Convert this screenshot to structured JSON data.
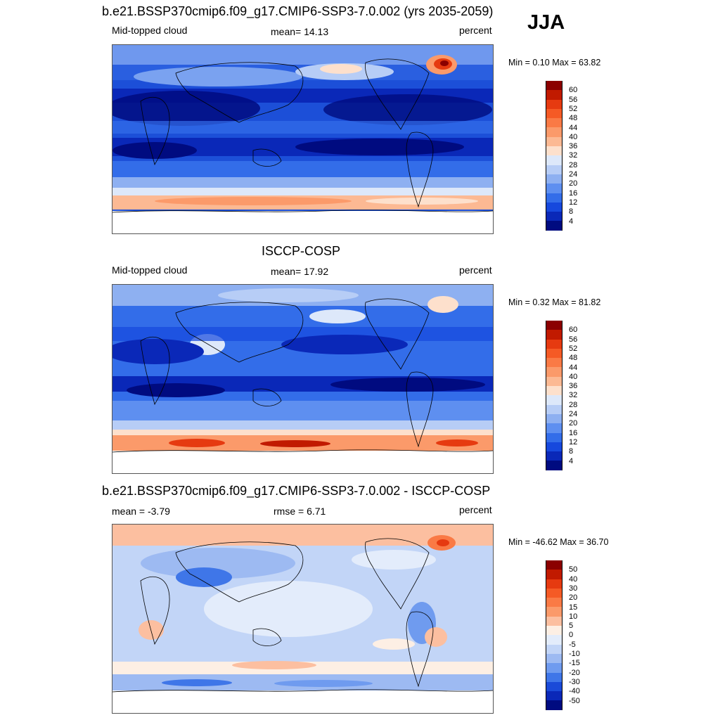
{
  "season": "JJA",
  "panels": [
    {
      "id": "model",
      "title": "b.e21.BSSP370cmip6.f09_g17.CMIP6-SSP3-7.0.002 (yrs 2035-2059)",
      "left_label": "Mid-topped cloud",
      "center_label": "mean=  14.13",
      "units": "percent",
      "minmax": "Min =   0.10 Max =  63.82",
      "colorbar": {
        "levels": [
          "60",
          "56",
          "52",
          "48",
          "44",
          "40",
          "36",
          "32",
          "28",
          "24",
          "20",
          "16",
          "12",
          "8",
          "4"
        ],
        "colors": [
          "#8b0000",
          "#c11a00",
          "#e63a10",
          "#f55a25",
          "#fa7a45",
          "#fb9a6a",
          "#fcb993",
          "#fde0cc",
          "#dde8fa",
          "#b7cdf6",
          "#8eb0f1",
          "#5e8ff0",
          "#336de9",
          "#1648dd",
          "#0a28b8",
          "#000b80"
        ]
      }
    },
    {
      "id": "obs",
      "title": "ISCCP-COSP",
      "left_label": "Mid-topped cloud",
      "center_label": "mean=  17.92",
      "units": "percent",
      "minmax": "Min =   0.32 Max =  81.82",
      "colorbar": {
        "levels": [
          "60",
          "56",
          "52",
          "48",
          "44",
          "40",
          "36",
          "32",
          "28",
          "24",
          "20",
          "16",
          "12",
          "8",
          "4"
        ],
        "colors": [
          "#8b0000",
          "#c11a00",
          "#e63a10",
          "#f55a25",
          "#fa7a45",
          "#fb9a6a",
          "#fcb993",
          "#fde0cc",
          "#dde8fa",
          "#b7cdf6",
          "#8eb0f1",
          "#5e8ff0",
          "#336de9",
          "#1648dd",
          "#0a28b8",
          "#000b80"
        ]
      }
    },
    {
      "id": "diff",
      "title": "b.e21.BSSP370cmip6.f09_g17.CMIP6-SSP3-7.0.002 - ISCCP-COSP",
      "left_label": "mean =  -3.79",
      "center_label": "rmse =   6.71",
      "units": "percent",
      "minmax": "Min = -46.62 Max =  36.70",
      "colorbar": {
        "levels": [
          "50",
          "40",
          "30",
          "20",
          "15",
          "10",
          "5",
          "0",
          "-5",
          "-10",
          "-15",
          "-20",
          "-30",
          "-40",
          "-50"
        ],
        "colors": [
          "#8b0000",
          "#c11a00",
          "#e63a10",
          "#f55a25",
          "#fa7a45",
          "#fb9a6a",
          "#fcbfa0",
          "#fdefe4",
          "#e3ecfb",
          "#c2d5f7",
          "#9dbaf2",
          "#6f9bef",
          "#3f76e8",
          "#1a4ad8",
          "#0a28b8",
          "#000b80"
        ]
      }
    }
  ]
}
